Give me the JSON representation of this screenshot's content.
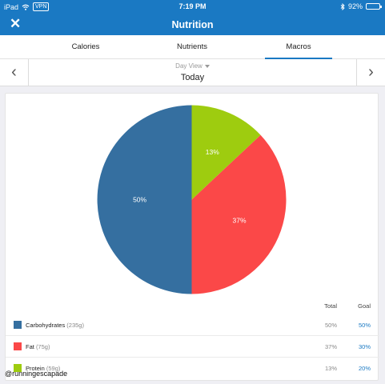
{
  "status_bar": {
    "device": "iPad",
    "vpn": "VPN",
    "time": "7:19 PM",
    "battery": "92%",
    "battery_level": 0.92
  },
  "nav": {
    "title": "Nutrition",
    "close_icon": "close-x-icon"
  },
  "tabs": [
    {
      "label": "Calories",
      "active": false
    },
    {
      "label": "Nutrients",
      "active": false
    },
    {
      "label": "Macros",
      "active": true
    }
  ],
  "day_nav": {
    "view_label": "Day View",
    "date_label": "Today",
    "prev_icon": "chevron-left-icon",
    "next_icon": "chevron-right-icon"
  },
  "chart_data": {
    "type": "pie",
    "slices": [
      {
        "label": "Carbohydrates",
        "value": 50,
        "display": "50%",
        "color": "#356fa0"
      },
      {
        "label": "Fat",
        "value": 37,
        "display": "37%",
        "color": "#fb4848"
      },
      {
        "label": "Protein",
        "value": 13,
        "display": "13%",
        "color": "#9ecc0f"
      }
    ]
  },
  "legend": {
    "total_header": "Total",
    "goal_header": "Goal",
    "rows": [
      {
        "name": "Carbohydrates",
        "grams": "(235g)",
        "total": "50%",
        "goal": "50%",
        "color": "#356fa0"
      },
      {
        "name": "Fat",
        "grams": "(75g)",
        "total": "37%",
        "goal": "30%",
        "color": "#fb4848"
      },
      {
        "name": "Protein",
        "grams": "(59g)",
        "total": "13%",
        "goal": "20%",
        "color": "#9ecc0f"
      }
    ]
  },
  "watermark": "@runningescapade"
}
